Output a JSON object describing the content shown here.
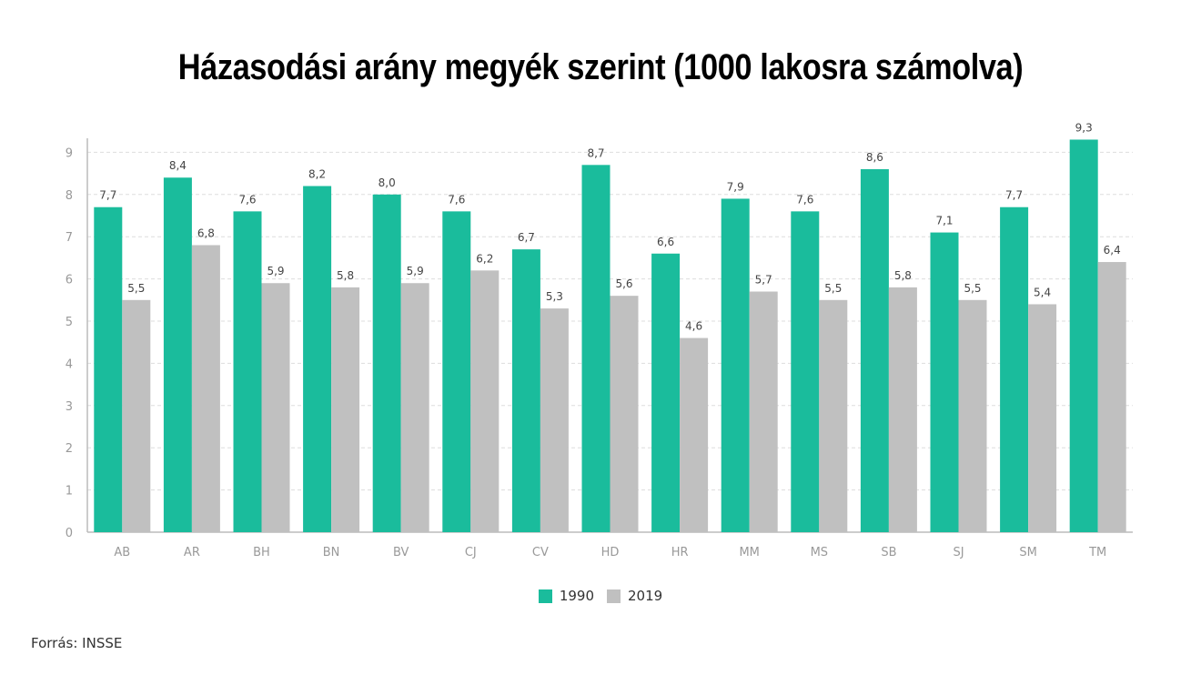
{
  "title": "Házasodási arány megyék szerint (1000 lakosra számolva)",
  "source": "Forrás: INSSE",
  "colors": {
    "series_1990": "#1abc9c",
    "series_2019": "#c0c0c0"
  },
  "chart_data": {
    "type": "bar",
    "categories": [
      "AB",
      "AR",
      "BH",
      "BN",
      "BV",
      "CJ",
      "CV",
      "HD",
      "HR",
      "MM",
      "MS",
      "SB",
      "SJ",
      "SM",
      "TM"
    ],
    "series": [
      {
        "name": "1990",
        "values": [
          7.7,
          8.4,
          7.6,
          8.2,
          8.0,
          7.6,
          6.7,
          8.7,
          6.6,
          7.9,
          7.6,
          8.6,
          7.1,
          7.7,
          9.3
        ],
        "labels": [
          "7,7",
          "8,4",
          "7,6",
          "8,2",
          "8,0",
          "7,6",
          "6,7",
          "8,7",
          "6,6",
          "7,9",
          "7,6",
          "8,6",
          "7,1",
          "7,7",
          "9,3"
        ]
      },
      {
        "name": "2019",
        "values": [
          5.5,
          6.8,
          5.9,
          5.8,
          5.9,
          6.2,
          5.3,
          5.6,
          4.6,
          5.7,
          5.5,
          5.8,
          5.5,
          5.4,
          6.4
        ],
        "labels": [
          "5,5",
          "6,8",
          "5,9",
          "5,8",
          "5,9",
          "6,2",
          "5,3",
          "5,6",
          "4,6",
          "5,7",
          "5,5",
          "5,8",
          "5,5",
          "5,4",
          "6,4"
        ]
      }
    ],
    "yticks": [
      "0",
      "1",
      "2",
      "3",
      "4",
      "5",
      "6",
      "7",
      "8",
      "9"
    ],
    "ylim": [
      0,
      9.3
    ],
    "grid": true,
    "legend_position": "bottom"
  }
}
